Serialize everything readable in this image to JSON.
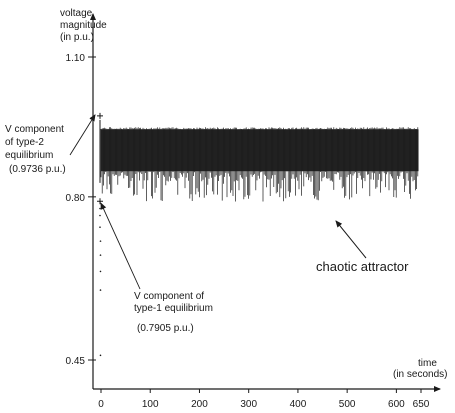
{
  "chart_data": {
    "type": "line",
    "title": "",
    "ylabel": [
      "voltage",
      "magnitude",
      "(in p.u.)"
    ],
    "xlabel": [
      "time",
      "(in seconds)"
    ],
    "x_ticks": [
      0,
      100,
      200,
      300,
      400,
      500,
      600,
      650
    ],
    "x_tick_labels": [
      "0",
      "100",
      "200",
      "300",
      "400",
      "500",
      "600",
      "650"
    ],
    "y_ticks": [
      0.45,
      0.8,
      1.1
    ],
    "y_tick_labels": [
      "0.45",
      "0.80",
      "1.10"
    ],
    "xlim": [
      -10,
      710
    ],
    "ylim": [
      0.41,
      1.21
    ],
    "series": [
      {
        "type": "band",
        "x_start": 0,
        "x_end": 645,
        "y_upper": 0.945,
        "y_core_low": 0.855,
        "y_spike_low": 0.79
      },
      {
        "type": "dotted",
        "x": [
          0,
          0,
          0,
          0,
          1,
          1,
          1,
          1,
          1
        ],
        "y": [
          0.79,
          0.775,
          0.76,
          0.735,
          0.705,
          0.675,
          0.64,
          0.6,
          0.46
        ]
      }
    ],
    "annotations": [
      {
        "text": [
          "V component",
          "of type-2",
          "equilibrium",
          "(0.9736 p.u.)"
        ],
        "x": 0,
        "y": 0.9736
      },
      {
        "text": [
          "V component of",
          "type-1 equilibrium",
          "",
          "(0.7905 p.u.)"
        ],
        "x": 0,
        "y": 0.7905
      },
      {
        "text": [
          "chaotic attractor"
        ],
        "x": 420,
        "y": 0.82
      }
    ]
  }
}
